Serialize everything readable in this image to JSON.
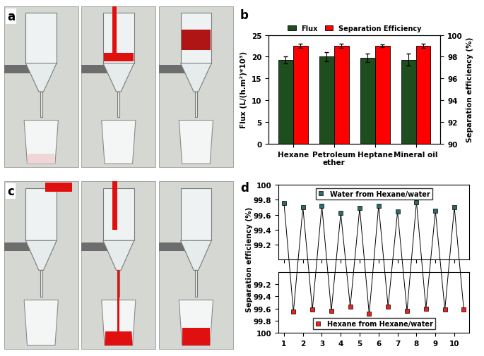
{
  "panel_labels": [
    "a",
    "b",
    "c",
    "d"
  ],
  "chart_data": [
    {
      "type": "bar",
      "categories": [
        "Hexane",
        "Petroleum ether",
        "Heptane",
        "Mineral oil"
      ],
      "y_label": "Flux (L/(h.m²)*10³)",
      "y2_label": "Separation efficiency (%)",
      "series": [
        {
          "name": "Flux",
          "color": "#1e4d1e",
          "values": [
            19.2,
            20.0,
            19.8,
            19.3
          ],
          "errors": [
            0.8,
            1.0,
            1.0,
            1.4
          ]
        },
        {
          "name": "Separation Efficiency",
          "color": "#ff0000",
          "axis": "y2",
          "values": [
            99.0,
            99.0,
            99.0,
            99.0
          ],
          "errors": [
            0.2,
            0.2,
            0.1,
            0.2
          ]
        }
      ],
      "ylim": [
        0,
        25
      ],
      "yticks": [
        0,
        5,
        10,
        15,
        20,
        25
      ],
      "y2lim": [
        90,
        100
      ],
      "y2ticks": [
        90,
        92,
        94,
        96,
        98,
        100
      ],
      "legend": "upper center"
    },
    {
      "type": "line",
      "series": [
        {
          "name": "Water from Hexane/water",
          "color": "#2e6b6b",
          "marker": "square",
          "x": [
            1,
            2,
            3,
            4,
            5,
            6,
            7,
            8,
            9,
            10
          ],
          "values": [
            99.76,
            99.7,
            99.72,
            99.62,
            99.69,
            99.72,
            99.64,
            99.77,
            99.65,
            99.7
          ]
        }
      ],
      "xlim": [
        0.7,
        10.8
      ],
      "xticks": [
        1,
        2,
        3,
        4,
        5,
        6,
        7,
        8,
        9,
        10
      ],
      "ylim": [
        99.0,
        100
      ],
      "yticks": [
        99.2,
        99.4,
        99.6,
        99.8,
        100
      ],
      "legend": "upper center",
      "tick_labels": "y"
    },
    {
      "type": "line",
      "y_label": "Separation efficiency (%)",
      "series": [
        {
          "name": "Hexane from Hexane/water",
          "color": "#e8231e",
          "marker": "square",
          "x": [
            1.5,
            2.5,
            3.5,
            4.5,
            5.5,
            6.5,
            7.5,
            8.5,
            9.5,
            10.5
          ],
          "values": [
            99.65,
            99.62,
            99.64,
            99.57,
            99.69,
            99.57,
            99.64,
            99.6,
            99.62,
            99.62
          ]
        }
      ],
      "xlim": [
        0.7,
        10.8
      ],
      "xticks": [
        1,
        2,
        3,
        4,
        5,
        6,
        7,
        8,
        9,
        10
      ],
      "ylim": [
        100,
        99.0
      ],
      "yticks": [
        99.2,
        99.4,
        99.6,
        99.8,
        100
      ],
      "legend": "lower center"
    }
  ]
}
